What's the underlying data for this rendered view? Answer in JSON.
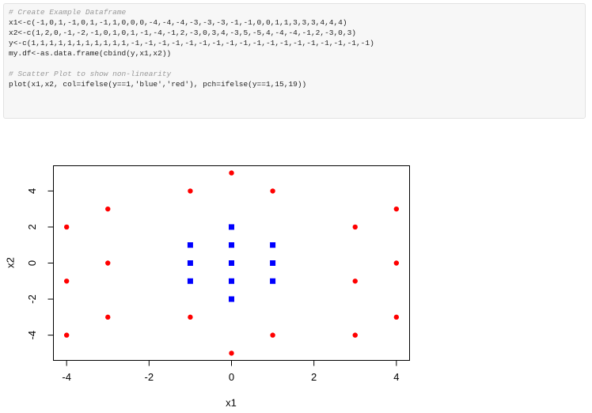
{
  "code": [
    "# Create Example Dataframe",
    "x1<-c(-1,0,1,-1,0,1,-1,1,0,0,0,-4,-4,-4,-3,-3,-3,-1,-1,0,0,1,1,3,3,3,4,4,4)",
    "x2<-c(1,2,0,-1,-2,-1,0,1,0,1,-1,-4,-1,2,-3,0,3,4,-3,5,-5,4,-4,-4,-1,2,-3,0,3)",
    "y<-c(1,1,1,1,1,1,1,1,1,1,1,-1,-1,-1,-1,-1,-1,-1,-1,-1,-1,-1,-1,-1,-1,-1,-1,-1,-1)",
    "my.df<-as.data.frame(cbind(y,x1,x2))",
    "# Scatter Plot to show non-linearity",
    "plot(x1,x2, col=ifelse(y==1,'blue','red'), pch=ifelse(y==1,15,19))"
  ],
  "chart_data": {
    "type": "scatter",
    "x_label": "x1",
    "y_label": "x2",
    "xlim": [
      -4.32,
      4.32
    ],
    "ylim": [
      -5.4,
      5.4
    ],
    "xticks": [
      -4,
      -2,
      0,
      2,
      4
    ],
    "yticks": [
      -4,
      -2,
      0,
      2,
      4
    ],
    "series": [
      {
        "color": "#0000ff",
        "marker": "square",
        "x": [
          -1,
          0,
          1,
          -1,
          0,
          1,
          -1,
          1,
          0,
          0,
          0
        ],
        "values": [
          1,
          2,
          0,
          -1,
          -2,
          -1,
          0,
          1,
          0,
          1,
          -1
        ]
      },
      {
        "color": "#ff0000",
        "marker": "circle",
        "x": [
          -4,
          -4,
          -4,
          -3,
          -3,
          -3,
          -1,
          -1,
          0,
          0,
          1,
          1,
          3,
          3,
          3,
          4,
          4,
          4
        ],
        "values": [
          -4,
          -1,
          2,
          -3,
          0,
          3,
          4,
          -3,
          5,
          -5,
          4,
          -4,
          -4,
          -1,
          2,
          -3,
          0,
          3
        ]
      }
    ]
  }
}
